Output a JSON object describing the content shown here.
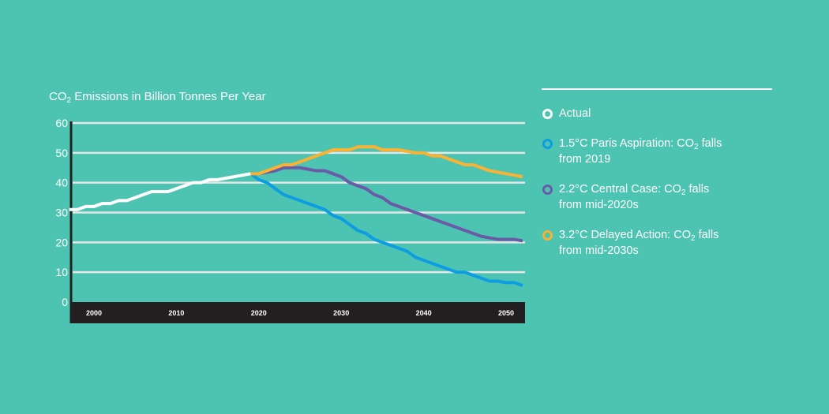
{
  "chart_data": {
    "type": "line",
    "title": {
      "prefix": "CO",
      "sub": "2",
      "suffix": " Emissions in Billion Tonnes Per Year"
    },
    "ylim": [
      0,
      60
    ],
    "yticks": [
      0,
      10,
      20,
      30,
      40,
      50,
      60
    ],
    "xlim": [
      1997,
      2052
    ],
    "xticks": [
      2000,
      2010,
      2020,
      2030,
      2040,
      2050
    ],
    "grid": true,
    "legend_position": "right",
    "colors": {
      "background": "#4dc4b2",
      "axis_band": "#231f20",
      "grid": "#e6e6e6"
    },
    "series": [
      {
        "name": "Actual",
        "color": "#ffffff",
        "x": [
          1997,
          1998,
          1999,
          2000,
          2001,
          2002,
          2003,
          2004,
          2005,
          2006,
          2007,
          2008,
          2009,
          2010,
          2011,
          2012,
          2013,
          2014,
          2015,
          2016,
          2017,
          2018,
          2019
        ],
        "y": [
          31,
          31,
          32,
          32,
          33,
          33,
          34,
          34,
          35,
          36,
          37,
          37,
          37,
          38,
          39,
          40,
          40,
          41,
          41,
          41.5,
          42,
          42.5,
          43
        ]
      },
      {
        "name": "1.5°C Paris Aspiration: CO2 falls from 2019",
        "color": "#0e9de0",
        "x": [
          2019,
          2020,
          2021,
          2022,
          2023,
          2024,
          2025,
          2026,
          2027,
          2028,
          2029,
          2030,
          2031,
          2032,
          2033,
          2034,
          2035,
          2036,
          2037,
          2038,
          2039,
          2040,
          2041,
          2042,
          2043,
          2044,
          2045,
          2046,
          2047,
          2048,
          2049,
          2050,
          2051,
          2052
        ],
        "y": [
          43,
          41,
          40,
          38,
          36,
          35,
          34,
          33,
          32,
          31,
          29,
          28,
          26,
          24,
          23,
          21,
          20,
          19,
          18,
          17,
          15,
          14,
          13,
          12,
          11,
          10,
          10,
          9,
          8,
          7,
          7,
          6.5,
          6.5,
          5.5
        ]
      },
      {
        "name": "2.2°C Central Case: CO2 falls from mid-2020s",
        "color": "#6a5aa8",
        "x": [
          2019,
          2020,
          2021,
          2022,
          2023,
          2024,
          2025,
          2026,
          2027,
          2028,
          2029,
          2030,
          2031,
          2032,
          2033,
          2034,
          2035,
          2036,
          2037,
          2038,
          2039,
          2040,
          2041,
          2042,
          2043,
          2044,
          2045,
          2046,
          2047,
          2048,
          2049,
          2050,
          2051,
          2052
        ],
        "y": [
          43,
          43,
          43.5,
          44,
          45,
          45,
          45,
          44.5,
          44,
          44,
          43,
          42,
          40,
          39,
          38,
          36,
          35,
          33,
          32,
          31,
          30,
          29,
          28,
          27,
          26,
          25,
          24,
          23,
          22,
          21.5,
          21,
          21,
          21,
          20.5
        ]
      },
      {
        "name": "3.2°C Delayed Action: CO2 falls from mid-2030s",
        "color": "#f9b233",
        "x": [
          2019,
          2020,
          2021,
          2022,
          2023,
          2024,
          2025,
          2026,
          2027,
          2028,
          2029,
          2030,
          2031,
          2032,
          2033,
          2034,
          2035,
          2036,
          2037,
          2038,
          2039,
          2040,
          2041,
          2042,
          2043,
          2044,
          2045,
          2046,
          2047,
          2048,
          2049,
          2050,
          2051,
          2052
        ],
        "y": [
          43,
          43,
          44,
          45,
          46,
          46,
          47,
          48,
          49,
          50,
          51,
          51,
          51,
          52,
          52,
          52,
          51,
          51,
          51,
          50.5,
          50,
          50,
          49,
          49,
          48,
          47,
          46,
          46,
          45,
          44,
          43.5,
          43,
          42.5,
          42
        ]
      }
    ]
  },
  "legend": [
    {
      "prefix": "Actual",
      "sub": "",
      "suffix": "",
      "line2": "",
      "color": "#ffffff"
    },
    {
      "prefix": "1.5°C Paris Aspiration: CO",
      "sub": "2",
      "suffix": " falls",
      "line2": "from 2019",
      "color": "#0e9de0"
    },
    {
      "prefix": "2.2°C Central Case: CO",
      "sub": "2",
      "suffix": " falls",
      "line2": "from mid-2020s",
      "color": "#6a5aa8"
    },
    {
      "prefix": "3.2°C Delayed Action: CO",
      "sub": "2",
      "suffix": " falls",
      "line2": "from mid-2030s",
      "color": "#f9b233"
    }
  ]
}
